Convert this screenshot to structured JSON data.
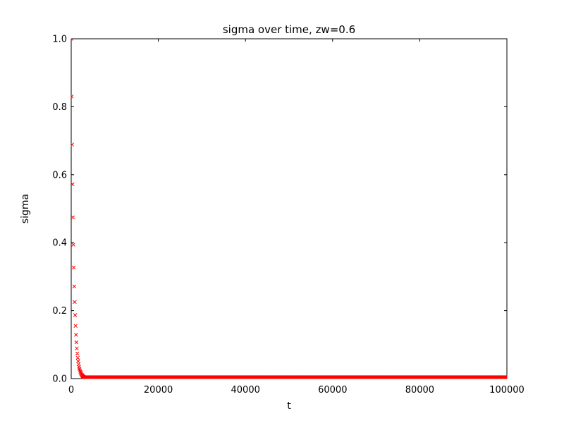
{
  "figure": {
    "background": "#ffffff"
  },
  "chart_data": {
    "type": "scatter",
    "title": "sigma over time, zw=0.6",
    "xlabel": "t",
    "ylabel": "sigma",
    "xlim": [
      0,
      100000
    ],
    "ylim": [
      0.0,
      1.0
    ],
    "grid": false,
    "legend": null,
    "xticks": {
      "values": [
        0,
        20000,
        40000,
        60000,
        80000,
        100000
      ],
      "labels": [
        "0",
        "20000",
        "40000",
        "60000",
        "80000",
        "100000"
      ]
    },
    "yticks": {
      "values": [
        0.0,
        0.2,
        0.4,
        0.6,
        0.8,
        1.0
      ],
      "labels": [
        "0.0",
        "0.2",
        "0.4",
        "0.6",
        "0.8",
        "1.0"
      ]
    },
    "series": [
      {
        "name": "sigma",
        "marker": "x",
        "color": "#ff0000",
        "line": "none",
        "generator": {
          "t_start": 0,
          "t_end": 100000,
          "t_step": 100,
          "sigma0": 1.0,
          "decay_ratio_per_step": 0.83,
          "floor": 0.004
        },
        "sample_points": [
          [
            0,
            1.0
          ],
          [
            100,
            0.83
          ],
          [
            200,
            0.69
          ],
          [
            300,
            0.57
          ],
          [
            400,
            0.475
          ],
          [
            500,
            0.395
          ],
          [
            600,
            0.33
          ],
          [
            700,
            0.27
          ],
          [
            800,
            0.225
          ],
          [
            900,
            0.185
          ],
          [
            1000,
            0.155
          ],
          [
            1100,
            0.13
          ],
          [
            1200,
            0.105
          ],
          [
            1300,
            0.088
          ],
          [
            1400,
            0.073
          ],
          [
            1500,
            0.06
          ],
          [
            2000,
            0.024
          ],
          [
            2500,
            0.01
          ],
          [
            3000,
            0.004
          ],
          [
            20000,
            0.004
          ],
          [
            40000,
            0.004
          ],
          [
            60000,
            0.004
          ],
          [
            80000,
            0.004
          ],
          [
            100000,
            0.004
          ]
        ]
      }
    ]
  }
}
